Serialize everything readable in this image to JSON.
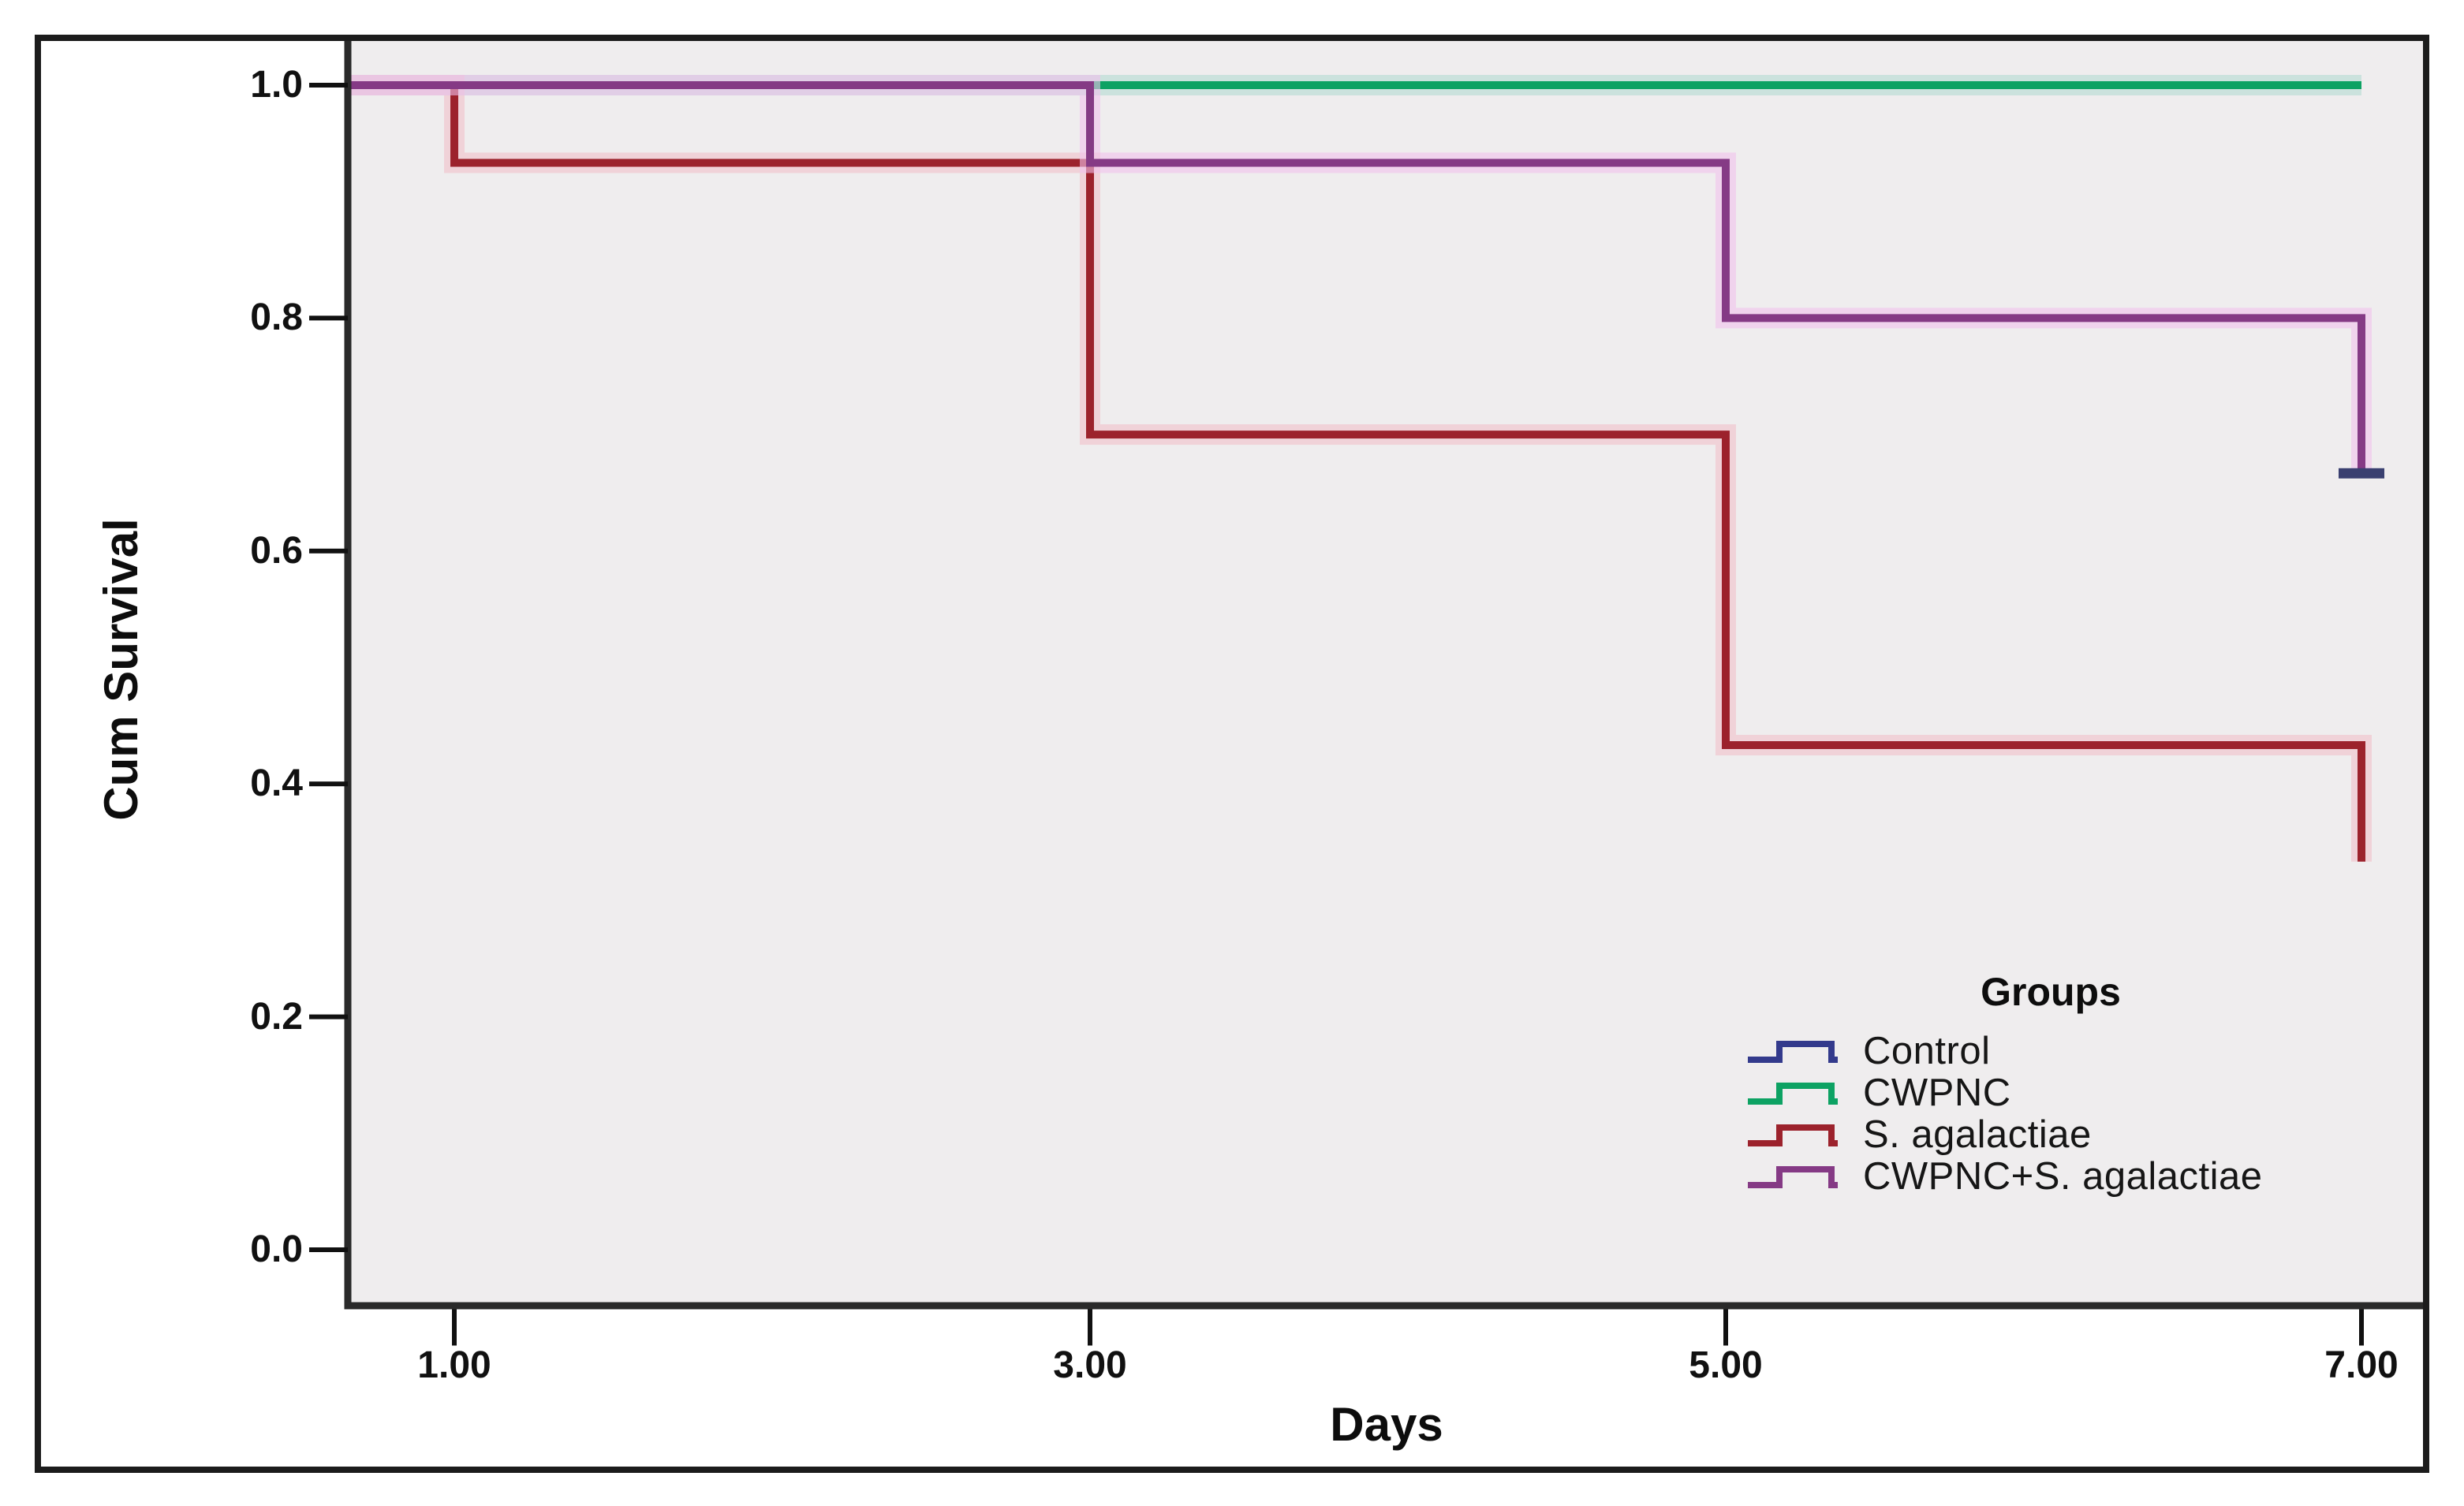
{
  "figure": {
    "background": "#ffffff",
    "border_color": "#1c1c1c",
    "plot_background": "#efedee",
    "axis_frame_color": "#2a2a2a"
  },
  "chart_data": {
    "type": "line",
    "subtype": "kaplan-meier-step-survival",
    "title": "",
    "xlabel": "Days",
    "ylabel": "Cum Survival",
    "x_ticks": {
      "labels": [
        "1.00",
        "3.00",
        "5.00",
        "7.00"
      ],
      "values": [
        1,
        3,
        5,
        7
      ]
    },
    "y_ticks": {
      "labels": [
        "1.0",
        "0.8",
        "0.6",
        "0.4",
        "0.2",
        "0.0"
      ],
      "values": [
        1.0,
        0.8,
        0.6,
        0.4,
        0.2,
        0.0
      ]
    },
    "xlim": [
      0.66,
      7.2
    ],
    "ylim": [
      0.0,
      1.0
    ],
    "grid": false,
    "legend": {
      "title": "Groups",
      "position": "lower-right"
    },
    "series": [
      {
        "name": "Control",
        "color": "#333a8c",
        "glow": "#c6c8e6",
        "points": [
          [
            0,
            1.0
          ],
          [
            7,
            1.0
          ]
        ]
      },
      {
        "name": "CWPNC",
        "color": "#0da263",
        "glow": "#c3e9d6",
        "points": [
          [
            0,
            1.0
          ],
          [
            7,
            1.0
          ]
        ]
      },
      {
        "name": "S. agalactiae",
        "color": "#9c222c",
        "glow": "#f0bfc9",
        "points": [
          [
            0,
            1.0
          ],
          [
            1,
            1.0
          ],
          [
            1,
            0.9333
          ],
          [
            3,
            0.9333
          ],
          [
            3,
            0.7
          ],
          [
            5,
            0.7
          ],
          [
            5,
            0.4333
          ],
          [
            7,
            0.4333
          ],
          [
            7,
            0.3333
          ]
        ]
      },
      {
        "name": "CWPNC+S. agalactiae",
        "color": "#853a85",
        "glow": "#f0c2ec",
        "points": [
          [
            0,
            1.0
          ],
          [
            3,
            1.0
          ],
          [
            3,
            0.9333
          ],
          [
            5,
            0.9333
          ],
          [
            5,
            0.8
          ],
          [
            7,
            0.8
          ],
          [
            7,
            0.6667
          ]
        ],
        "end_cap_color": "#3a4070"
      }
    ]
  }
}
